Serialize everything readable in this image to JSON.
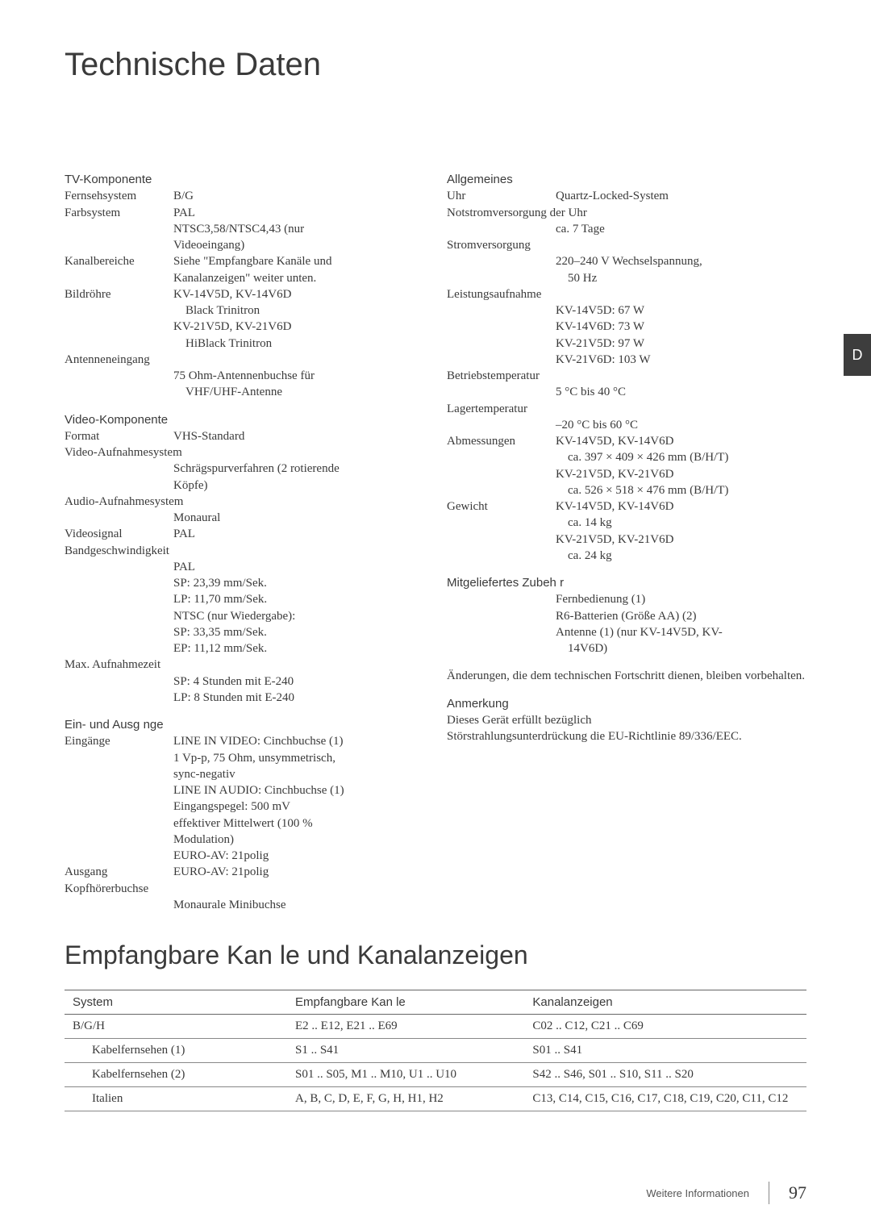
{
  "title": "Technische Daten",
  "tab": "D",
  "left": {
    "s1": "TV-Komponente",
    "l1k": "Fernsehsystem",
    "l1v": "B/G",
    "l2k": "Farbsystem",
    "l2v": "PAL",
    "l3": "NTSC3,58/NTSC4,43 (nur",
    "l4": "Videoeingang)",
    "l5k": "Kanalbereiche",
    "l5v": "Siehe \"Empfangbare Kanäle und",
    "l6": "Kanalanzeigen\" weiter unten.",
    "l7k": "Bildröhre",
    "l7v": "KV-14V5D, KV-14V6D",
    "l8": "Black Trinitron",
    "l9": "KV-21V5D, KV-21V6D",
    "l10": "HiBlack Trinitron",
    "l11": "Antenneneingang",
    "l12": "75 Ohm-Antennenbuchse für",
    "l13": "VHF/UHF-Antenne",
    "s2": "Video-Komponente",
    "l14k": "Format",
    "l14v": "VHS-Standard",
    "l15": "Video-Aufnahmesystem",
    "l16": "Schrägspurverfahren (2 rotierende",
    "l17": "Köpfe)",
    "l18": "Audio-Aufnahmesystem",
    "l19": "Monaural",
    "l20k": "Videosignal",
    "l20v": "PAL",
    "l21": "Bandgeschwindigkeit",
    "l22": "PAL",
    "l23": "SP: 23,39 mm/Sek.",
    "l24": "LP: 11,70 mm/Sek.",
    "l25": "NTSC (nur Wiedergabe):",
    "l26": "SP: 33,35 mm/Sek.",
    "l27": "EP: 11,12 mm/Sek.",
    "l28": "Max. Aufnahmezeit",
    "l29": "SP: 4 Stunden mit E-240",
    "l30": "LP: 8 Stunden mit E-240",
    "s3": "Ein- und Ausg nge",
    "l31k": "Eingänge",
    "l31v": "LINE IN VIDEO: Cinchbuchse (1)",
    "l32": "1 Vp-p, 75 Ohm, unsymmetrisch,",
    "l33": "sync-negativ",
    "l34": "LINE IN AUDIO: Cinchbuchse (1)",
    "l35": "Eingangspegel: 500 mV",
    "l36": "effektiver Mittelwert (100 %",
    "l37": "Modulation)",
    "l38": "EURO-AV: 21polig",
    "l39k": "Ausgang",
    "l39v": "EURO-AV: 21polig",
    "l40": "Kopfhörerbuchse",
    "l41": "Monaurale Minibuchse"
  },
  "right": {
    "s1": "Allgemeines",
    "r1k": "Uhr",
    "r1v": "Quartz-Locked-System",
    "r2": "Notstromversorgung der Uhr",
    "r3": "ca. 7 Tage",
    "r4": "Stromversorgung",
    "r5": "220–240 V Wechselspannung,",
    "r6": "50 Hz",
    "r7": "Leistungsaufnahme",
    "r8": "KV-14V5D: 67 W",
    "r9": "KV-14V6D: 73 W",
    "r10": "KV-21V5D: 97 W",
    "r11": "KV-21V6D: 103 W",
    "r12": "Betriebstemperatur",
    "r13": "5 °C bis 40 °C",
    "r14": "Lagertemperatur",
    "r15": "–20 °C bis 60 °C",
    "r16k": "Abmessungen",
    "r16v": "KV-14V5D, KV-14V6D",
    "r17": "ca. 397 × 409 × 426 mm (B/H/T)",
    "r18": "KV-21V5D, KV-21V6D",
    "r19": "ca. 526 × 518 × 476 mm (B/H/T)",
    "r20k": "Gewicht",
    "r20v": "KV-14V5D, KV-14V6D",
    "r21": "ca. 14 kg",
    "r22": "KV-21V5D, KV-21V6D",
    "r23": "ca. 24 kg",
    "s2": "Mitgeliefertes Zubeh r",
    "r24": "Fernbedienung (1)",
    "r25": "R6-Batterien (Größe AA) (2)",
    "r26": "Antenne (1) (nur KV-14V5D, KV-",
    "r27": "14V6D)",
    "note1": "Änderungen, die dem technischen Fortschritt dienen, bleiben vorbehalten.",
    "s3": "Anmerkung",
    "note2a": "Dieses Gerät erfüllt bezüglich",
    "note2b": "Störstrahlungsunterdrückung die EU-Richtlinie 89/336/EEC."
  },
  "subTitle": "Empfangbare Kan le und Kanalanzeigen",
  "table": {
    "h1": "System",
    "h2": "Empfangbare Kan le",
    "h3": "Kanalanzeigen",
    "rows": [
      [
        "B/G/H",
        "E2 .. E12, E21 .. E69",
        "C02 .. C12, C21 .. C69",
        false
      ],
      [
        "Kabelfernsehen (1)",
        "S1 .. S41",
        "S01 .. S41",
        true
      ],
      [
        "Kabelfernsehen (2)",
        "S01 .. S05, M1 .. M10, U1 .. U10",
        "S42 .. S46, S01 .. S10, S11 .. S20",
        true
      ],
      [
        "Italien",
        "A, B, C, D, E, F, G, H, H1, H2",
        "C13, C14, C15, C16, C17, C18, C19, C20, C11, C12",
        true
      ]
    ]
  },
  "footer": {
    "text": "Weitere Informationen",
    "page": "97"
  }
}
